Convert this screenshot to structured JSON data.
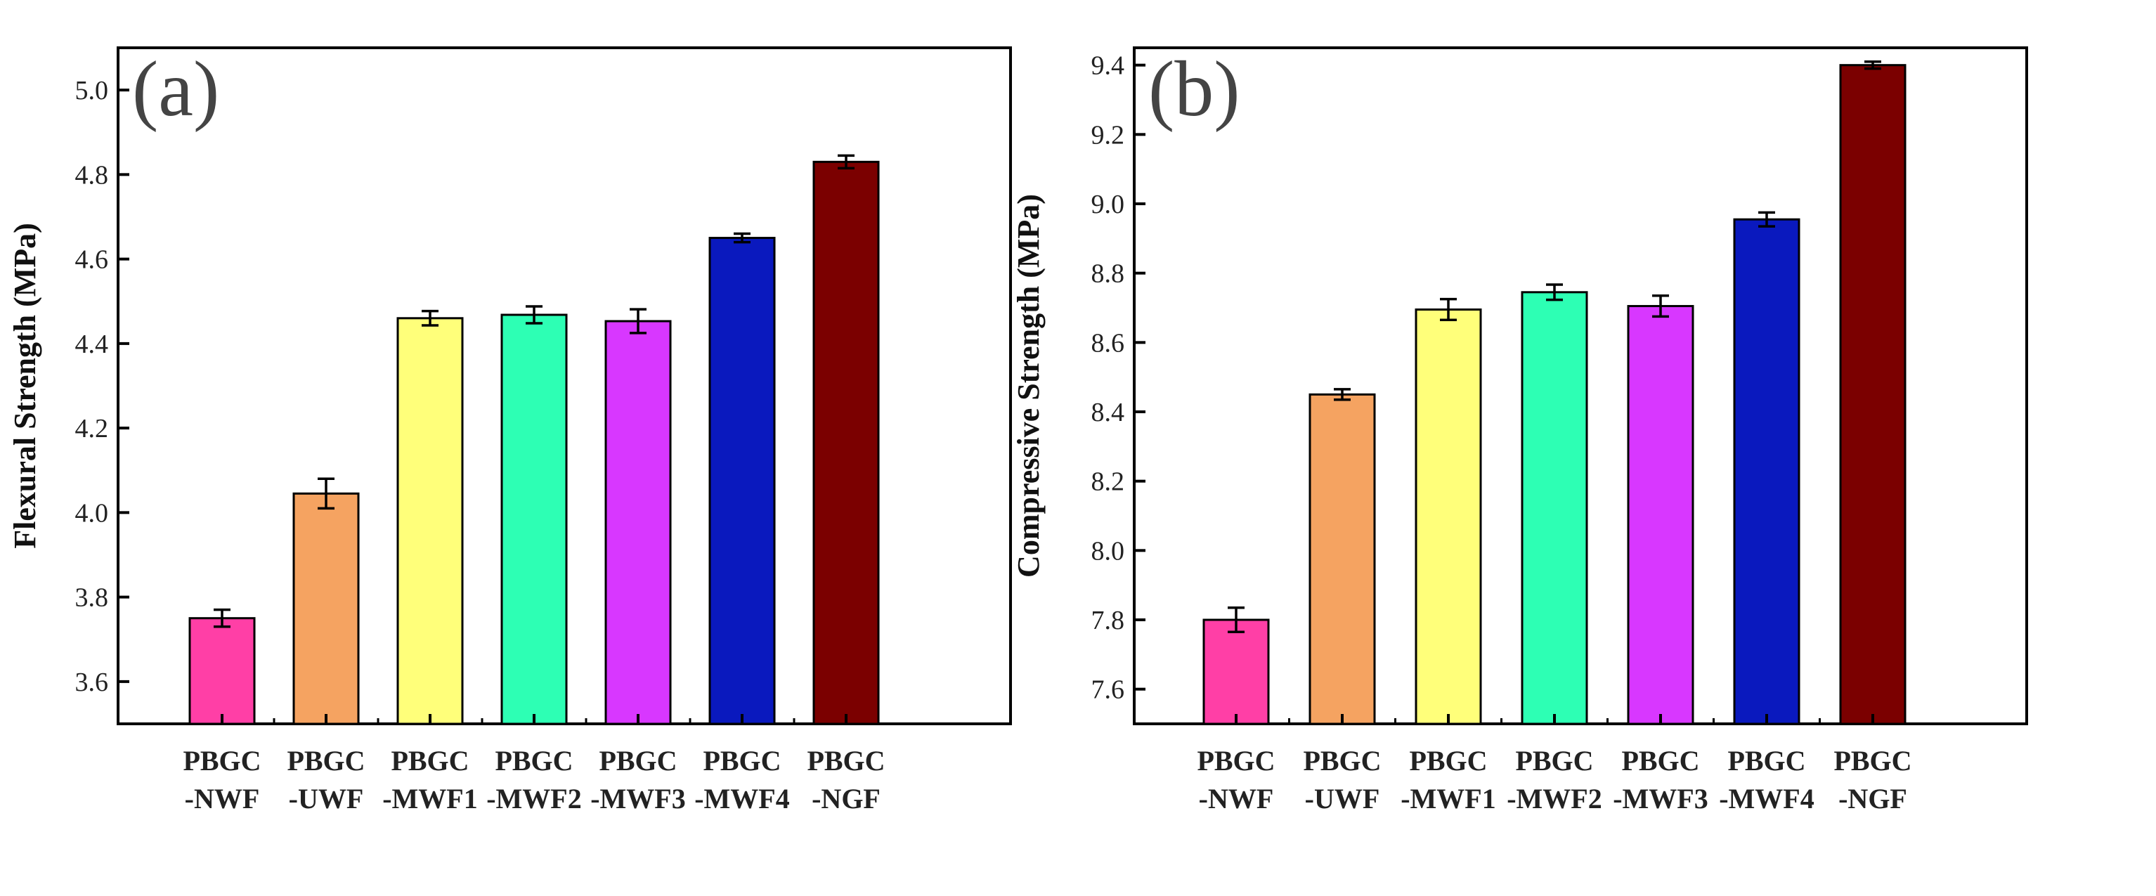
{
  "chart_data": [
    {
      "type": "bar",
      "panel_label": "(a)",
      "title": "",
      "xlabel": "",
      "ylabel": "Flexural Strength (MPa)",
      "ylim": [
        3.5,
        5.1
      ],
      "yticks": [
        "3.6",
        "3.8",
        "4.0",
        "4.2",
        "4.4",
        "4.6",
        "4.8",
        "5.0"
      ],
      "categories": [
        {
          "line1": "PBGC",
          "line2": "-NWF"
        },
        {
          "line1": "PBGC",
          "line2": "-UWF"
        },
        {
          "line1": "PBGC",
          "line2": "-MWF1"
        },
        {
          "line1": "PBGC",
          "line2": "-MWF2"
        },
        {
          "line1": "PBGC",
          "line2": "-MWF3"
        },
        {
          "line1": "PBGC",
          "line2": "-MWF4"
        },
        {
          "line1": "PBGC",
          "line2": "-NGF"
        }
      ],
      "values": [
        3.75,
        4.045,
        4.46,
        4.468,
        4.453,
        4.65,
        4.83
      ],
      "errors": [
        0.02,
        0.035,
        0.017,
        0.02,
        0.028,
        0.01,
        0.015
      ],
      "colors": [
        "#FF3FA6",
        "#F5A361",
        "#FFFF7A",
        "#2DFFB4",
        "#D837FF",
        "#0A19BE",
        "#7B0000"
      ],
      "grid": false
    },
    {
      "type": "bar",
      "panel_label": "(b)",
      "title": "",
      "xlabel": "",
      "ylabel": "Compressive Strength (MPa)",
      "ylim": [
        7.5,
        9.45
      ],
      "yticks": [
        "7.6",
        "7.8",
        "8.0",
        "8.2",
        "8.4",
        "8.6",
        "8.8",
        "9.0",
        "9.2",
        "9.4"
      ],
      "categories": [
        {
          "line1": "PBGC",
          "line2": "-NWF"
        },
        {
          "line1": "PBGC",
          "line2": "-UWF"
        },
        {
          "line1": "PBGC",
          "line2": "-MWF1"
        },
        {
          "line1": "PBGC",
          "line2": "-MWF2"
        },
        {
          "line1": "PBGC",
          "line2": "-MWF3"
        },
        {
          "line1": "PBGC",
          "line2": "-MWF4"
        },
        {
          "line1": "PBGC",
          "line2": "-NGF"
        }
      ],
      "values": [
        7.8,
        8.45,
        8.695,
        8.745,
        8.705,
        8.955,
        9.4
      ],
      "errors": [
        0.035,
        0.015,
        0.03,
        0.022,
        0.03,
        0.02,
        0.01
      ],
      "colors": [
        "#FF3FA6",
        "#F5A361",
        "#FFFF7A",
        "#2DFFB4",
        "#D837FF",
        "#0A19BE",
        "#7B0000"
      ],
      "grid": false
    }
  ]
}
